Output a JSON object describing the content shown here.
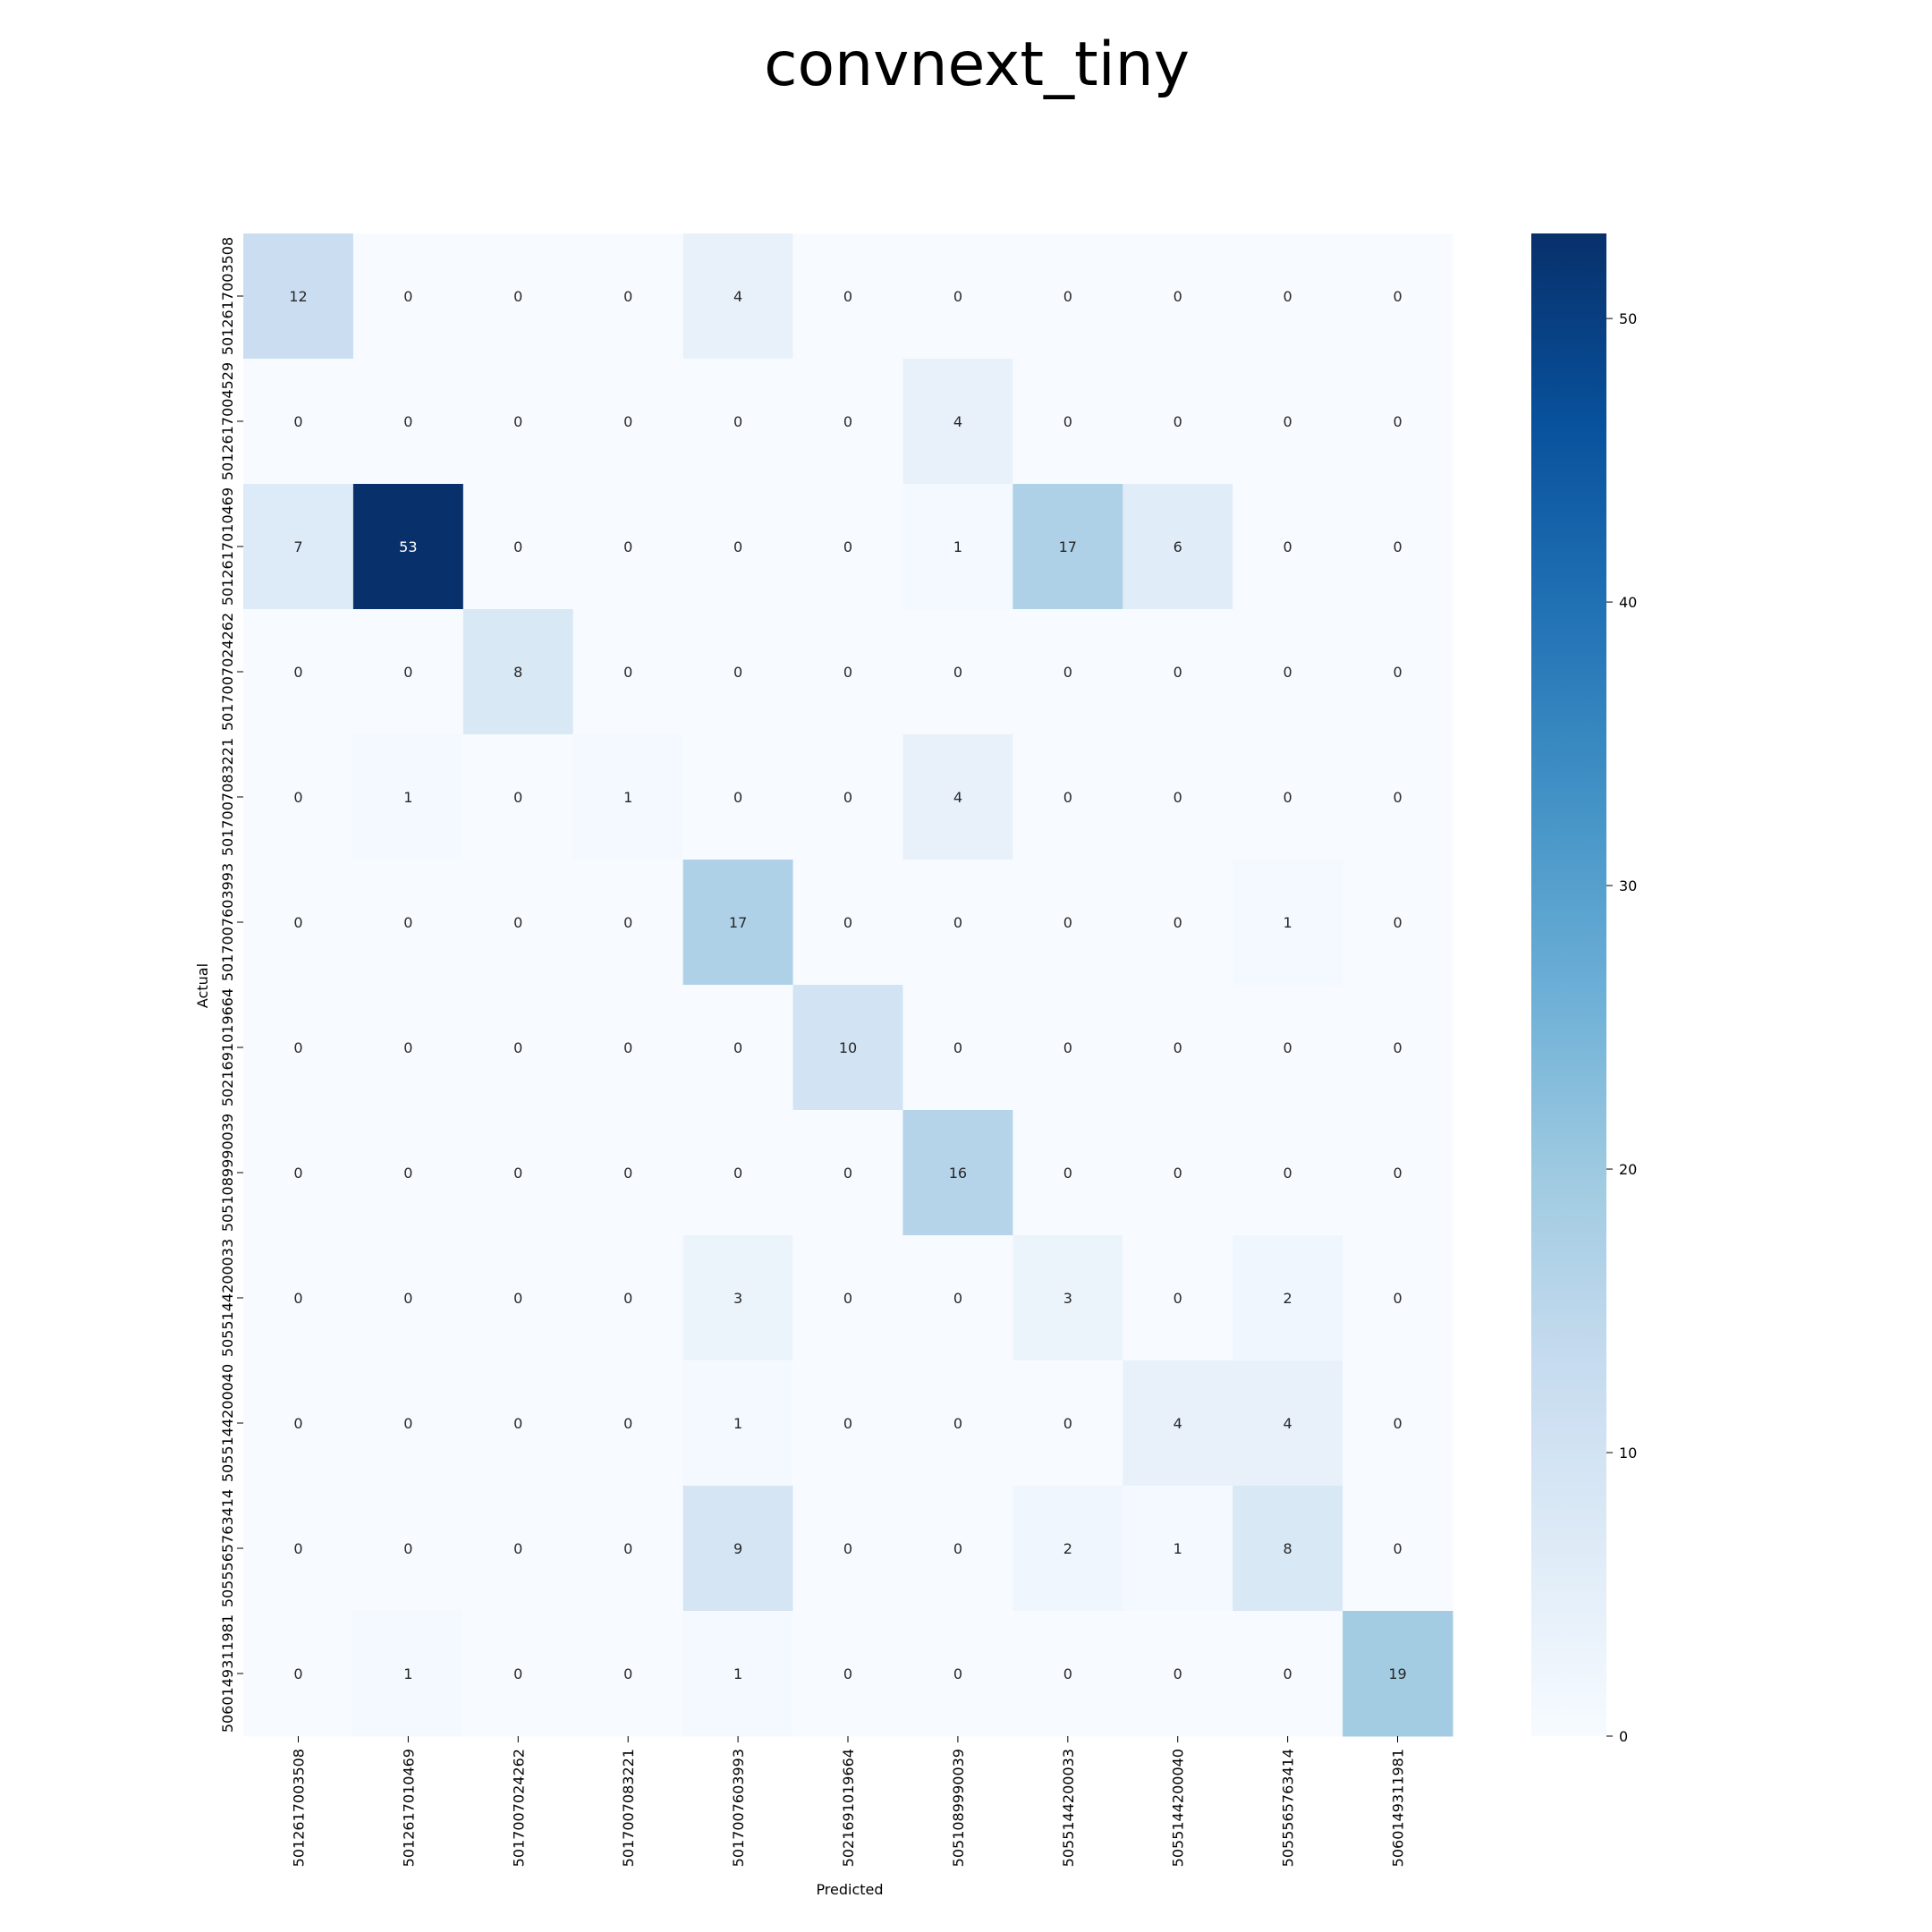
{
  "chart_data": {
    "type": "heatmap",
    "title": "convnext_tiny",
    "xlabel": "Predicted",
    "ylabel": "Actual",
    "x_categories": [
      "5012617003508",
      "5012617010469",
      "5017007024262",
      "5017007083221",
      "5017007603993",
      "5021691019664",
      "5051089990039",
      "5055144200033",
      "5055144200040",
      "5055565763414",
      "5060149311981"
    ],
    "y_categories": [
      "5012617003508",
      "5012617004529",
      "5012617010469",
      "5017007024262",
      "5017007083221",
      "5017007603993",
      "5021691019664",
      "5051089990039",
      "5055144200033",
      "5055144200040",
      "5055565763414",
      "5060149311981"
    ],
    "matrix": [
      [
        12,
        0,
        0,
        0,
        4,
        0,
        0,
        0,
        0,
        0,
        0
      ],
      [
        0,
        0,
        0,
        0,
        0,
        0,
        4,
        0,
        0,
        0,
        0
      ],
      [
        7,
        53,
        0,
        0,
        0,
        0,
        1,
        17,
        6,
        0,
        0
      ],
      [
        0,
        0,
        8,
        0,
        0,
        0,
        0,
        0,
        0,
        0,
        0
      ],
      [
        0,
        1,
        0,
        1,
        0,
        0,
        4,
        0,
        0,
        0,
        0
      ],
      [
        0,
        0,
        0,
        0,
        17,
        0,
        0,
        0,
        0,
        1,
        0
      ],
      [
        0,
        0,
        0,
        0,
        0,
        10,
        0,
        0,
        0,
        0,
        0
      ],
      [
        0,
        0,
        0,
        0,
        0,
        0,
        16,
        0,
        0,
        0,
        0
      ],
      [
        0,
        0,
        0,
        0,
        3,
        0,
        0,
        3,
        0,
        2,
        0
      ],
      [
        0,
        0,
        0,
        0,
        1,
        0,
        0,
        0,
        4,
        4,
        0
      ],
      [
        0,
        0,
        0,
        0,
        9,
        0,
        0,
        2,
        1,
        8,
        0
      ],
      [
        0,
        1,
        0,
        0,
        1,
        0,
        0,
        0,
        0,
        0,
        19
      ]
    ],
    "colorbar": {
      "min": 0,
      "max": 53,
      "ticks": [
        0,
        10,
        20,
        30,
        40,
        50
      ]
    },
    "colormap": "Blues",
    "grid": false
  }
}
